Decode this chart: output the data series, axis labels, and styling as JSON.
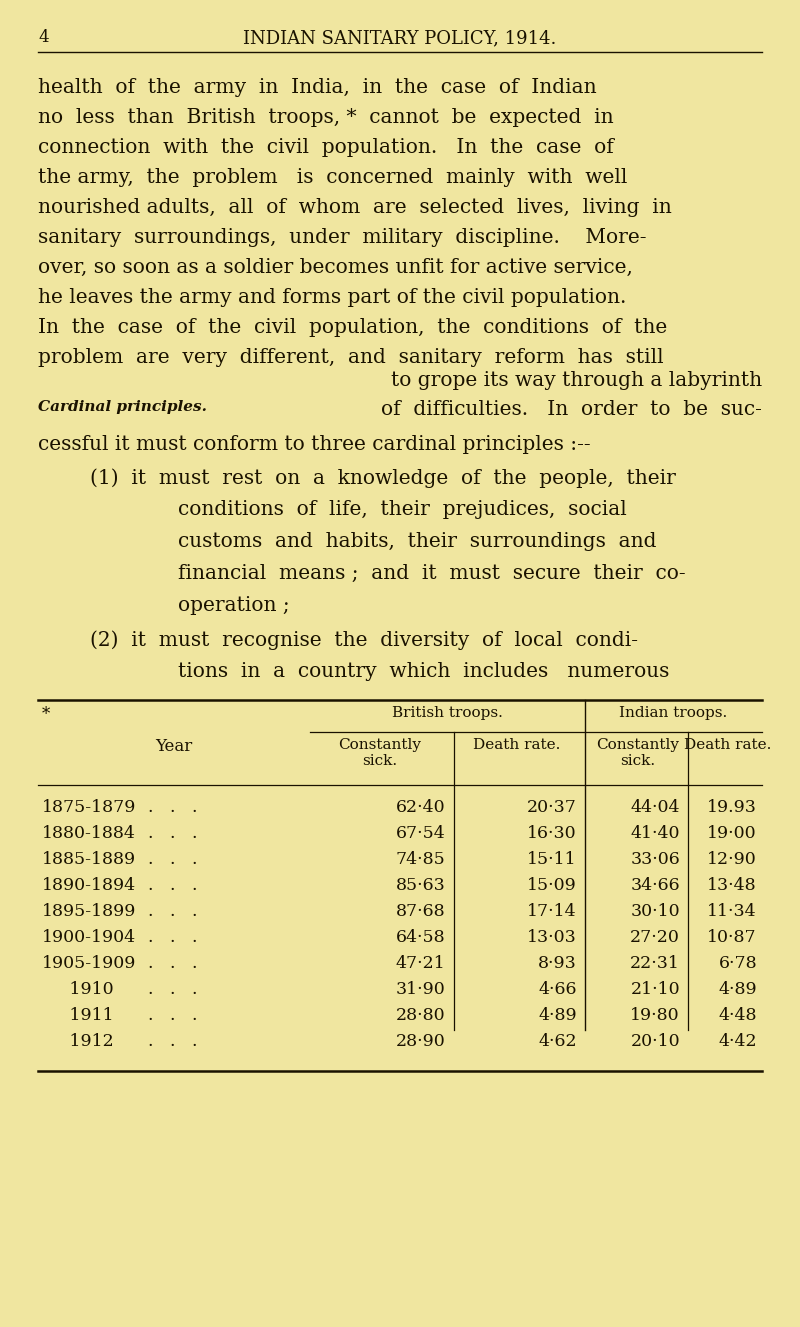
{
  "background_color": "#f0e6a0",
  "page_number": "4",
  "header_title": "INDIAN SANITARY POLICY, 1914.",
  "text_color": "#1a1200",
  "table": {
    "rows": [
      [
        "1875-1879",
        "62·40",
        "20·37",
        "44·04",
        "19.93"
      ],
      [
        "1880-1884",
        "67·54",
        "16·30",
        "41·40",
        "19·00"
      ],
      [
        "1885-1889",
        "74·85",
        "15·11",
        "33·06",
        "12·90"
      ],
      [
        "1890-1894",
        "85·63",
        "15·09",
        "34·66",
        "13·48"
      ],
      [
        "1895-1899",
        "87·68",
        "17·14",
        "30·10",
        "11·34"
      ],
      [
        "1900-1904",
        "64·58",
        "13·03",
        "27·20",
        "10·87"
      ],
      [
        "1905-1909",
        "47·21",
        "8·93",
        "22·31",
        "6·78"
      ],
      [
        "1910",
        "31·90",
        "4·66",
        "21·10",
        "4·89"
      ],
      [
        "1911",
        "28·80",
        "4·89",
        "19·80",
        "4·48"
      ],
      [
        "1912",
        "28·90",
        "4·62",
        "20·10",
        "4·42"
      ]
    ]
  }
}
